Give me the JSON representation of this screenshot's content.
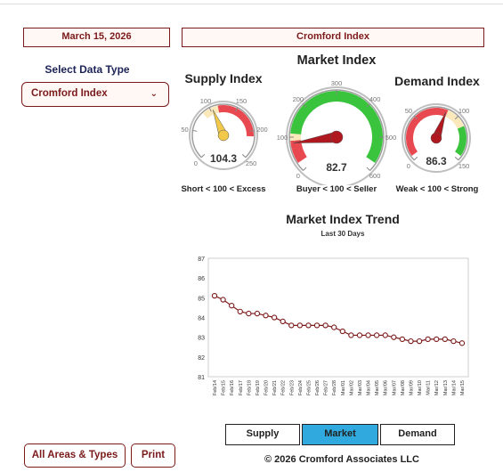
{
  "header": {
    "date": "March 15, 2026",
    "selected_title": "Cromford Index"
  },
  "data_type": {
    "label": "Select Data Type",
    "selected": "Cromford Index",
    "chevron_icon": "chevron-down-icon"
  },
  "gauges": {
    "supply": {
      "title": "Supply Index",
      "value": 104.3,
      "value_label": "104.3",
      "min": 0,
      "max": 250,
      "ticks": [
        "0",
        "50",
        "100",
        "150",
        "200",
        "250"
      ],
      "caption": "Short < 100 < Excess",
      "bands": [
        {
          "from": 85,
          "to": 115,
          "color": "#fbe9bc"
        },
        {
          "from": 115,
          "to": 210,
          "color": "#e8484f"
        }
      ],
      "needle_color": "#f2c84b"
    },
    "market": {
      "title": "Market Index",
      "value": 82.7,
      "value_label": "82.7",
      "min": 0,
      "max": 600,
      "ticks": [
        "0",
        "100",
        "200",
        "300",
        "400",
        "500",
        "600"
      ],
      "caption": "Buyer < 100 < Seller",
      "bands": [
        {
          "from": 25,
          "to": 90,
          "color": "#e8484f"
        },
        {
          "from": 90,
          "to": 110,
          "color": "#fbe9bc"
        },
        {
          "from": 110,
          "to": 575,
          "color": "#3ac43d"
        }
      ],
      "needle_color": "#b01820"
    },
    "demand": {
      "title": "Demand Index",
      "value": 86.3,
      "value_label": "86.3",
      "min": 0,
      "max": 150,
      "ticks": [
        "0",
        "50",
        "100",
        "150"
      ],
      "caption": "Weak < 100 < Strong",
      "bands": [
        {
          "from": 5,
          "to": 88,
          "color": "#e8484f"
        },
        {
          "from": 88,
          "to": 112,
          "color": "#fbe9bc"
        },
        {
          "from": 112,
          "to": 145,
          "color": "#3ac43d"
        }
      ],
      "needle_color": "#b01820"
    }
  },
  "chart_data": {
    "type": "line",
    "title": "Market Index Trend",
    "subtitle": "Last 30 Days",
    "ylim": [
      81,
      87
    ],
    "yticks": [
      "81",
      "82",
      "83",
      "84",
      "85",
      "86",
      "87"
    ],
    "grid": false,
    "x": [
      "Feb/14",
      "Feb/15",
      "Feb/16",
      "Feb/17",
      "Feb/18",
      "Feb/19",
      "Feb/20",
      "Feb/21",
      "Feb/22",
      "Feb/23",
      "Feb/24",
      "Feb/25",
      "Feb/26",
      "Feb/27",
      "Feb/28",
      "Mar/01",
      "Mar/02",
      "Mar/03",
      "Mar/04",
      "Mar/05",
      "Mar/06",
      "Mar/07",
      "Mar/08",
      "Mar/09",
      "Mar/10",
      "Mar/11",
      "Mar/12",
      "Mar/13",
      "Mar/14",
      "Mar/15"
    ],
    "series": [
      {
        "values": [
          85.1,
          84.9,
          84.6,
          84.3,
          84.2,
          84.2,
          84.1,
          84.0,
          83.8,
          83.6,
          83.6,
          83.6,
          83.6,
          83.6,
          83.5,
          83.3,
          83.1,
          83.1,
          83.1,
          83.1,
          83.1,
          83.0,
          82.9,
          82.8,
          82.8,
          82.9,
          82.9,
          82.9,
          82.8,
          82.7
        ]
      }
    ],
    "line_color": "#7b1a1a"
  },
  "tabs": {
    "supply": "Supply",
    "market": "Market",
    "demand": "Demand",
    "active": "market",
    "active_color": "#2fa9de"
  },
  "footer": {
    "copyright": "© 2026 Cromford Associates LLC",
    "all_areas": "All Areas & Types",
    "print": "Print"
  }
}
